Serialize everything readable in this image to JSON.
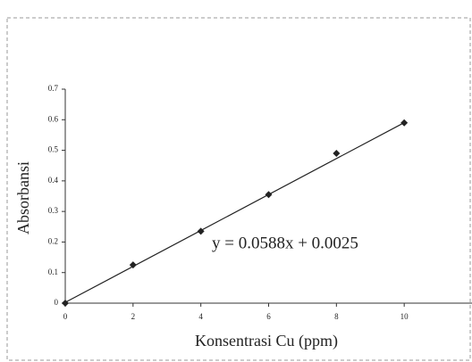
{
  "chart_data": {
    "type": "scatter",
    "x_label": "Konsentrasi Cu (ppm)",
    "y_label": "Absorbansi",
    "annotation": "y = 0.0588x + 0.0025",
    "trendline": {
      "slope": 0.0588,
      "intercept": 0.0025
    },
    "x": [
      0,
      2,
      4,
      6,
      8,
      10
    ],
    "values": [
      0,
      0.125,
      0.235,
      0.355,
      0.49,
      0.59
    ],
    "color": "#222222",
    "xlim": [
      0,
      12
    ],
    "xticks": [
      0,
      2,
      4,
      6,
      8,
      10
    ],
    "ylim": [
      0,
      0.7
    ],
    "yticks": [
      0,
      0.1,
      0.2,
      0.3,
      0.4,
      0.5,
      0.6,
      0.7
    ],
    "grid": false
  }
}
